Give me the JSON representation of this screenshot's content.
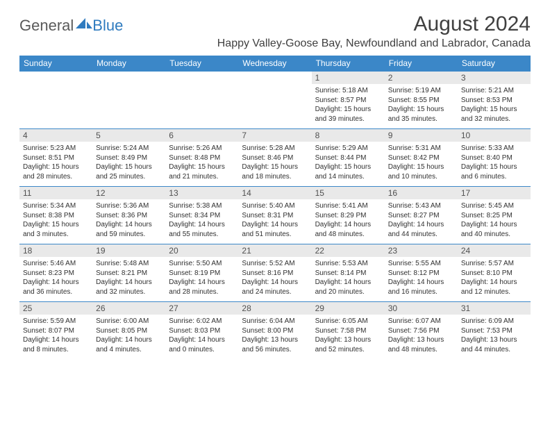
{
  "logo": {
    "word1": "General",
    "word2": "Blue"
  },
  "title": "August 2024",
  "location": "Happy Valley-Goose Bay, Newfoundland and Labrador, Canada",
  "header_bg": "#3b87c8",
  "weekdays": [
    "Sunday",
    "Monday",
    "Tuesday",
    "Wednesday",
    "Thursday",
    "Friday",
    "Saturday"
  ],
  "weeks": [
    [
      null,
      null,
      null,
      null,
      {
        "n": "1",
        "sr": "5:18 AM",
        "ss": "8:57 PM",
        "dl": "15 hours and 39 minutes."
      },
      {
        "n": "2",
        "sr": "5:19 AM",
        "ss": "8:55 PM",
        "dl": "15 hours and 35 minutes."
      },
      {
        "n": "3",
        "sr": "5:21 AM",
        "ss": "8:53 PM",
        "dl": "15 hours and 32 minutes."
      }
    ],
    [
      {
        "n": "4",
        "sr": "5:23 AM",
        "ss": "8:51 PM",
        "dl": "15 hours and 28 minutes."
      },
      {
        "n": "5",
        "sr": "5:24 AM",
        "ss": "8:49 PM",
        "dl": "15 hours and 25 minutes."
      },
      {
        "n": "6",
        "sr": "5:26 AM",
        "ss": "8:48 PM",
        "dl": "15 hours and 21 minutes."
      },
      {
        "n": "7",
        "sr": "5:28 AM",
        "ss": "8:46 PM",
        "dl": "15 hours and 18 minutes."
      },
      {
        "n": "8",
        "sr": "5:29 AM",
        "ss": "8:44 PM",
        "dl": "15 hours and 14 minutes."
      },
      {
        "n": "9",
        "sr": "5:31 AM",
        "ss": "8:42 PM",
        "dl": "15 hours and 10 minutes."
      },
      {
        "n": "10",
        "sr": "5:33 AM",
        "ss": "8:40 PM",
        "dl": "15 hours and 6 minutes."
      }
    ],
    [
      {
        "n": "11",
        "sr": "5:34 AM",
        "ss": "8:38 PM",
        "dl": "15 hours and 3 minutes."
      },
      {
        "n": "12",
        "sr": "5:36 AM",
        "ss": "8:36 PM",
        "dl": "14 hours and 59 minutes."
      },
      {
        "n": "13",
        "sr": "5:38 AM",
        "ss": "8:34 PM",
        "dl": "14 hours and 55 minutes."
      },
      {
        "n": "14",
        "sr": "5:40 AM",
        "ss": "8:31 PM",
        "dl": "14 hours and 51 minutes."
      },
      {
        "n": "15",
        "sr": "5:41 AM",
        "ss": "8:29 PM",
        "dl": "14 hours and 48 minutes."
      },
      {
        "n": "16",
        "sr": "5:43 AM",
        "ss": "8:27 PM",
        "dl": "14 hours and 44 minutes."
      },
      {
        "n": "17",
        "sr": "5:45 AM",
        "ss": "8:25 PM",
        "dl": "14 hours and 40 minutes."
      }
    ],
    [
      {
        "n": "18",
        "sr": "5:46 AM",
        "ss": "8:23 PM",
        "dl": "14 hours and 36 minutes."
      },
      {
        "n": "19",
        "sr": "5:48 AM",
        "ss": "8:21 PM",
        "dl": "14 hours and 32 minutes."
      },
      {
        "n": "20",
        "sr": "5:50 AM",
        "ss": "8:19 PM",
        "dl": "14 hours and 28 minutes."
      },
      {
        "n": "21",
        "sr": "5:52 AM",
        "ss": "8:16 PM",
        "dl": "14 hours and 24 minutes."
      },
      {
        "n": "22",
        "sr": "5:53 AM",
        "ss": "8:14 PM",
        "dl": "14 hours and 20 minutes."
      },
      {
        "n": "23",
        "sr": "5:55 AM",
        "ss": "8:12 PM",
        "dl": "14 hours and 16 minutes."
      },
      {
        "n": "24",
        "sr": "5:57 AM",
        "ss": "8:10 PM",
        "dl": "14 hours and 12 minutes."
      }
    ],
    [
      {
        "n": "25",
        "sr": "5:59 AM",
        "ss": "8:07 PM",
        "dl": "14 hours and 8 minutes."
      },
      {
        "n": "26",
        "sr": "6:00 AM",
        "ss": "8:05 PM",
        "dl": "14 hours and 4 minutes."
      },
      {
        "n": "27",
        "sr": "6:02 AM",
        "ss": "8:03 PM",
        "dl": "14 hours and 0 minutes."
      },
      {
        "n": "28",
        "sr": "6:04 AM",
        "ss": "8:00 PM",
        "dl": "13 hours and 56 minutes."
      },
      {
        "n": "29",
        "sr": "6:05 AM",
        "ss": "7:58 PM",
        "dl": "13 hours and 52 minutes."
      },
      {
        "n": "30",
        "sr": "6:07 AM",
        "ss": "7:56 PM",
        "dl": "13 hours and 48 minutes."
      },
      {
        "n": "31",
        "sr": "6:09 AM",
        "ss": "7:53 PM",
        "dl": "13 hours and 44 minutes."
      }
    ]
  ],
  "labels": {
    "sunrise": "Sunrise: ",
    "sunset": "Sunset: ",
    "daylight": "Daylight: "
  }
}
